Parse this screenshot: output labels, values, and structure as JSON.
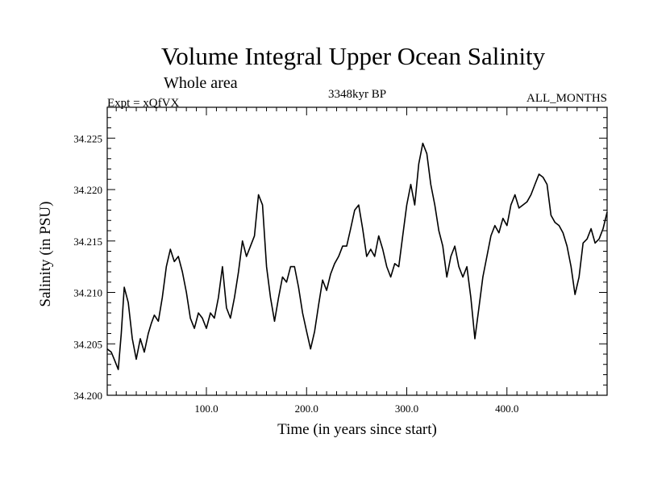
{
  "chart_data": {
    "type": "line",
    "title": "Volume Integral Upper Ocean Salinity",
    "subtitle": "Whole area",
    "experiment": "Expt = xQfVX",
    "period": "3348kyr BP",
    "months": "ALL_MONTHS",
    "xlabel": "Time (in years since start)",
    "ylabel": "Salinity (in PSU)",
    "xlim": [
      1,
      500
    ],
    "ylim": [
      34.2,
      34.228
    ],
    "x_ticks": [
      100,
      200,
      300,
      400
    ],
    "x_tick_labels": [
      "100.0",
      "200.0",
      "300.0",
      "400.0"
    ],
    "y_ticks": [
      34.2,
      34.205,
      34.21,
      34.215,
      34.22,
      34.225
    ],
    "y_tick_labels": [
      "34.200",
      "34.205",
      "34.210",
      "34.215",
      "34.220",
      "34.225"
    ],
    "series": [
      {
        "name": "Salinity",
        "x": [
          1,
          5,
          8,
          12,
          15,
          18,
          22,
          26,
          30,
          34,
          38,
          42,
          45,
          48,
          52,
          56,
          60,
          64,
          68,
          72,
          76,
          80,
          84,
          88,
          92,
          96,
          100,
          104,
          108,
          112,
          116,
          120,
          124,
          128,
          132,
          136,
          140,
          144,
          148,
          152,
          156,
          160,
          164,
          168,
          172,
          176,
          180,
          184,
          188,
          192,
          196,
          200,
          204,
          208,
          212,
          216,
          220,
          224,
          228,
          232,
          236,
          240,
          244,
          248,
          252,
          256,
          260,
          264,
          268,
          272,
          276,
          280,
          284,
          288,
          292,
          296,
          300,
          304,
          308,
          312,
          316,
          320,
          324,
          328,
          332,
          336,
          340,
          344,
          348,
          352,
          356,
          360,
          364,
          368,
          372,
          376,
          380,
          384,
          388,
          392,
          396,
          400,
          404,
          408,
          412,
          416,
          420,
          424,
          428,
          432,
          436,
          440,
          444,
          448,
          452,
          456,
          460,
          464,
          468,
          472,
          476,
          480,
          484,
          488,
          492,
          496,
          500
        ],
        "values": [
          34.2045,
          34.2042,
          34.2035,
          34.2025,
          34.206,
          34.2105,
          34.209,
          34.2055,
          34.2035,
          34.2055,
          34.2042,
          34.206,
          34.207,
          34.2078,
          34.2072,
          34.2095,
          34.2125,
          34.2142,
          34.213,
          34.2135,
          34.212,
          34.21,
          34.2075,
          34.2065,
          34.208,
          34.2075,
          34.2065,
          34.208,
          34.2075,
          34.2095,
          34.2125,
          34.2085,
          34.2075,
          34.2095,
          34.212,
          34.215,
          34.2135,
          34.2145,
          34.2155,
          34.2195,
          34.2185,
          34.2125,
          34.2095,
          34.2072,
          34.2095,
          34.2115,
          34.211,
          34.2125,
          34.2125,
          34.2105,
          34.208,
          34.2062,
          34.2045,
          34.2062,
          34.2088,
          34.2112,
          34.2102,
          34.2118,
          34.2128,
          34.2135,
          34.2145,
          34.2145,
          34.2162,
          34.218,
          34.2185,
          34.2162,
          34.2135,
          34.2142,
          34.2135,
          34.2155,
          34.2142,
          34.2125,
          34.2115,
          34.2128,
          34.2125,
          34.2155,
          34.2185,
          34.2205,
          34.2185,
          34.2225,
          34.2245,
          34.2235,
          34.2205,
          34.2185,
          34.216,
          34.2145,
          34.2115,
          34.2135,
          34.2145,
          34.2125,
          34.2115,
          34.2125,
          34.2095,
          34.2055,
          34.2085,
          34.2115,
          34.2135,
          34.2155,
          34.2165,
          34.2158,
          34.2172,
          34.2165,
          34.2185,
          34.2195,
          34.2182,
          34.2185,
          34.2188,
          34.2195,
          34.2205,
          34.2215,
          34.2212,
          34.2205,
          34.2175,
          34.2168,
          34.2165,
          34.2158,
          34.2145,
          34.2125,
          34.2098,
          34.2115,
          34.2148,
          34.2152,
          34.2162,
          34.2148,
          34.2152,
          34.2162,
          34.2178
        ]
      }
    ]
  }
}
